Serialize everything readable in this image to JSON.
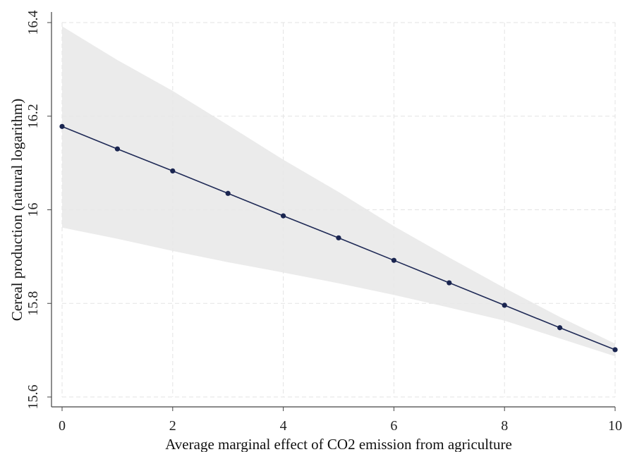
{
  "chart_data": {
    "type": "line",
    "title": "",
    "xlabel": "Average marginal effect of CO2 emission from agriculture",
    "ylabel": "Cereal production (natural logarithm)",
    "xlim": [
      0,
      10
    ],
    "ylim": [
      15.6,
      16.4
    ],
    "x_ticks": [
      "0",
      "2",
      "4",
      "6",
      "8",
      "10"
    ],
    "y_ticks": [
      "15.6",
      "15.8",
      "16",
      "16.2",
      "16.4"
    ],
    "grid": true,
    "legend": "none",
    "x": [
      0,
      1,
      2,
      3,
      4,
      5,
      6,
      7,
      8,
      9,
      10
    ],
    "series": [
      {
        "values": [
          16.178,
          16.13,
          16.083,
          16.035,
          15.987,
          15.94,
          15.892,
          15.844,
          15.796,
          15.748,
          15.701
        ],
        "ci_upper": [
          16.392,
          16.32,
          16.254,
          16.181,
          16.107,
          16.038,
          15.965,
          15.898,
          15.833,
          15.771,
          15.714
        ],
        "ci_lower": [
          15.962,
          15.938,
          15.912,
          15.888,
          15.866,
          15.843,
          15.818,
          15.791,
          15.763,
          15.725,
          15.687
        ]
      }
    ],
    "colors": {
      "line": "#1f2a56",
      "marker": "#1a2550",
      "ci_fill": "#e8e8e8",
      "grid": "#e3e3e3",
      "axis": "#444444"
    }
  }
}
